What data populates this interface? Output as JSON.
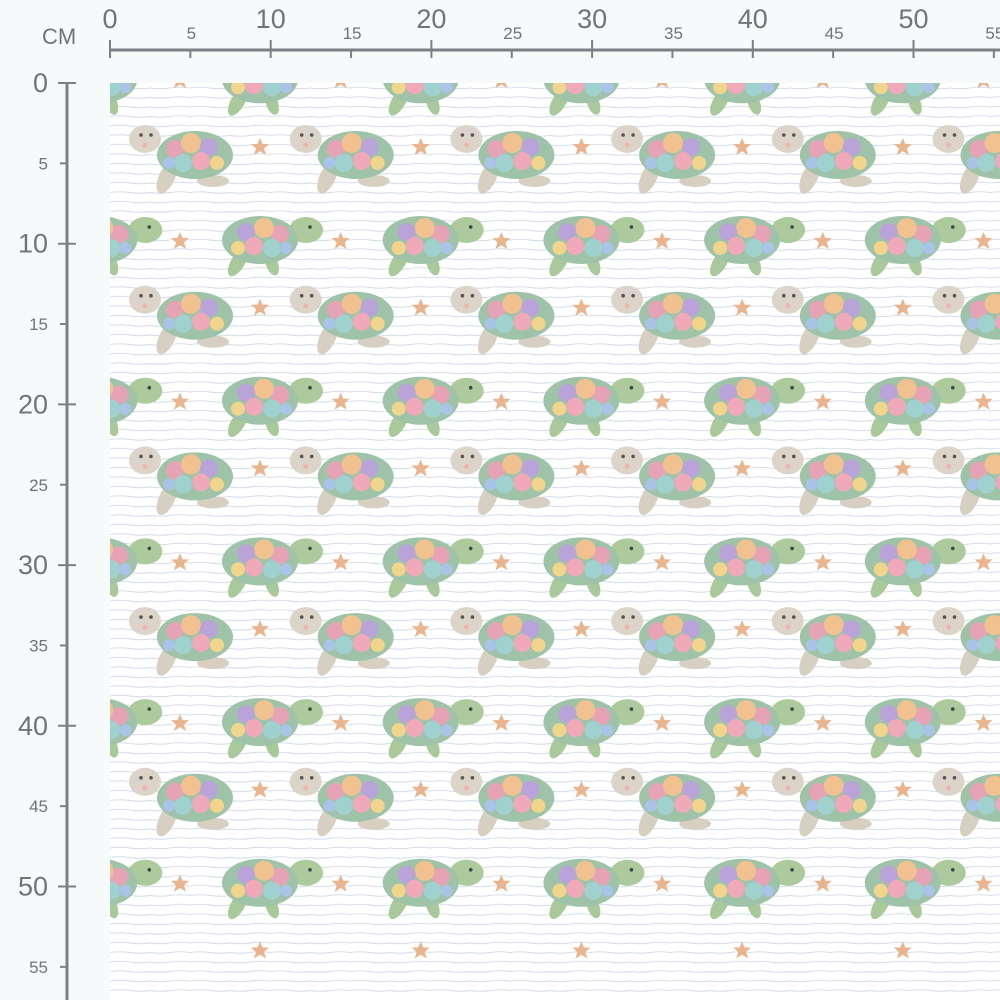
{
  "ruler": {
    "unit": "CM",
    "top_labels": [
      "0",
      "5",
      "10",
      "15",
      "20",
      "25",
      "30",
      "35",
      "40",
      "45",
      "50",
      "55"
    ],
    "left_labels": [
      "0",
      "5",
      "10",
      "15",
      "20",
      "25",
      "30",
      "35",
      "40",
      "45",
      "50",
      "55"
    ],
    "color": "#7a8085"
  },
  "fabric": {
    "pattern": "sea-turtles",
    "repeat_cm": 10,
    "background": "#ffffff",
    "stripe_color": "#c9d5e3",
    "colors": {
      "beige_turtle": "#d9d1c6",
      "green_turtle": "#a9c99a",
      "star": "#eab48e"
    }
  }
}
